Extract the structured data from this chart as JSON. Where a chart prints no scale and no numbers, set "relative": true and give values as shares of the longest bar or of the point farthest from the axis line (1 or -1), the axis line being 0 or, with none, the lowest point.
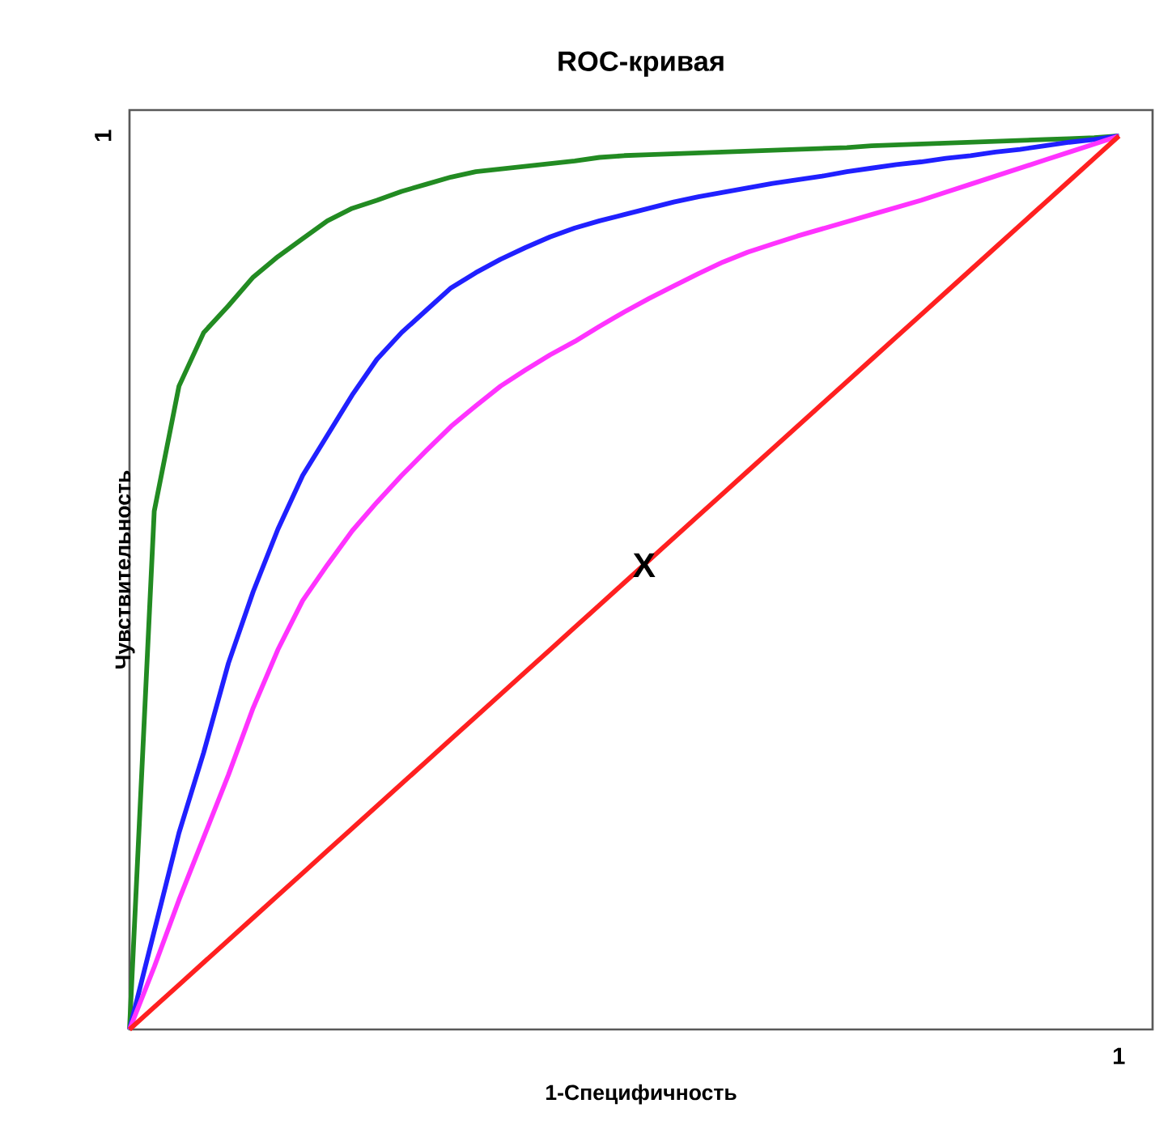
{
  "chart_data": {
    "type": "line",
    "title": "ROC-кривая",
    "xlabel": "1-Специфичность",
    "ylabel": "Чувствительность",
    "relative": true,
    "marker": "none",
    "line_style": "solid",
    "categories": [
      null,
      null,
      null,
      null,
      null,
      null,
      null,
      null,
      null,
      null,
      null,
      null,
      null,
      null,
      null,
      null,
      null,
      null,
      null,
      null,
      null,
      null,
      null,
      null,
      null,
      null,
      null,
      null,
      null,
      null,
      null,
      null,
      null,
      null,
      null,
      null,
      null,
      null,
      null,
      null,
      null
    ],
    "series": [
      {
        "color": "#228b22",
        "values": [
          0,
          0.58,
          0.72,
          0.78,
          0.81,
          0.842,
          0.865,
          0.885,
          0.905,
          0.919,
          0.928,
          0.938,
          0.946,
          0.954,
          0.96,
          0.963,
          0.966,
          0.969,
          0.972,
          0.976,
          0.978,
          0.979,
          0.98,
          0.981,
          0.982,
          0.983,
          0.984,
          0.985,
          0.986,
          0.987,
          0.989,
          0.99,
          0.991,
          0.992,
          0.993,
          0.994,
          0.995,
          0.996,
          0.997,
          0.998,
          1
        ]
      },
      {
        "color": "#2020ff",
        "values": [
          0,
          0.11,
          0.22,
          0.31,
          0.41,
          0.49,
          0.56,
          0.62,
          0.665,
          0.71,
          0.75,
          0.78,
          0.805,
          0.83,
          0.847,
          0.862,
          0.875,
          0.887,
          0.897,
          0.905,
          0.912,
          0.919,
          0.926,
          0.932,
          0.937,
          0.942,
          0.947,
          0.951,
          0.955,
          0.96,
          0.964,
          0.968,
          0.971,
          0.975,
          0.978,
          0.982,
          0.985,
          0.989,
          0.993,
          0.996,
          1
        ]
      },
      {
        "color": "#ff33ff",
        "values": [
          0,
          0.07,
          0.145,
          0.215,
          0.285,
          0.36,
          0.425,
          0.48,
          0.52,
          0.558,
          0.59,
          0.62,
          0.648,
          0.675,
          0.698,
          0.72,
          0.738,
          0.755,
          0.77,
          0.787,
          0.803,
          0.818,
          0.832,
          0.846,
          0.859,
          0.87,
          0.879,
          0.888,
          0.896,
          0.904,
          0.912,
          0.92,
          0.928,
          0.937,
          0.946,
          0.955,
          0.964,
          0.973,
          0.982,
          0.991,
          1
        ]
      },
      {
        "color": "#ff2020",
        "values": [
          0,
          0.025,
          0.05,
          0.075,
          0.1,
          0.125,
          0.15,
          0.175,
          0.2,
          0.225,
          0.25,
          0.275,
          0.3,
          0.325,
          0.35,
          0.375,
          0.4,
          0.425,
          0.45,
          0.475,
          0.5,
          0.525,
          0.55,
          0.575,
          0.6,
          0.625,
          0.65,
          0.675,
          0.7,
          0.725,
          0.75,
          0.775,
          0.8,
          0.825,
          0.85,
          0.875,
          0.9,
          0.925,
          0.95,
          0.975,
          1
        ]
      }
    ],
    "annotations": [
      "1",
      "1",
      "X"
    ]
  }
}
